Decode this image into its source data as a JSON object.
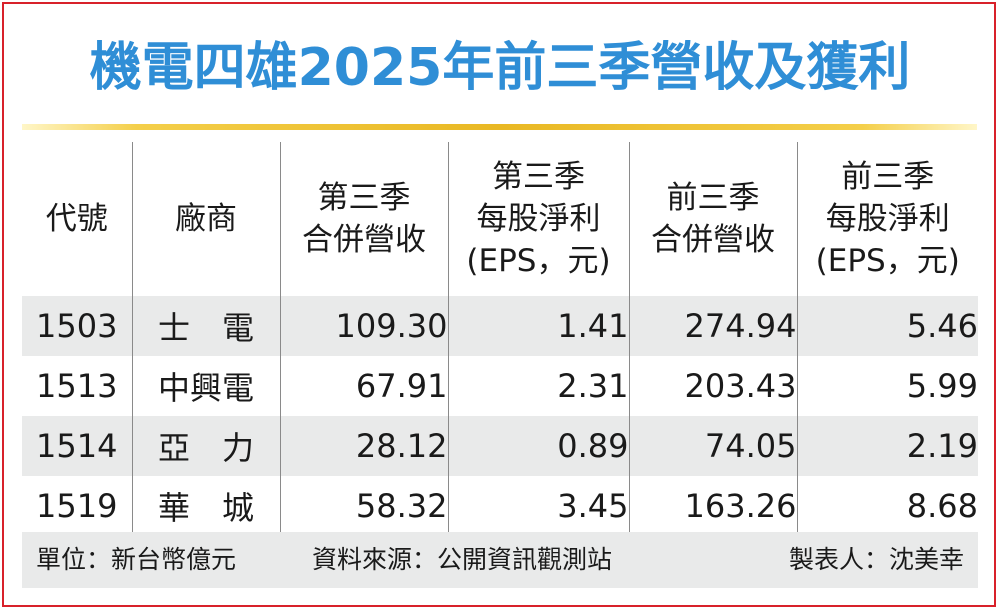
{
  "title": "機電四雄2025年前三季營收及獲利",
  "table": {
    "headers": [
      [
        "代號"
      ],
      [
        "廠商"
      ],
      [
        "第三季",
        "合併營收"
      ],
      [
        "第三季",
        "每股淨利",
        "(EPS，元)"
      ],
      [
        "前三季",
        "合併營收"
      ],
      [
        "前三季",
        "每股淨利",
        "(EPS，元)"
      ]
    ],
    "rows": [
      [
        "1503",
        "士　電",
        "109.30",
        "1.41",
        "274.94",
        "5.46"
      ],
      [
        "1513",
        "中興電",
        "67.91",
        "2.31",
        "203.43",
        "5.99"
      ],
      [
        "1514",
        "亞　力",
        "28.12",
        "0.89",
        "74.05",
        "2.19"
      ],
      [
        "1519",
        "華　城",
        "58.32",
        "3.45",
        "163.26",
        "8.68"
      ]
    ]
  },
  "footer": {
    "unit": "單位：新台幣億元",
    "source": "資料來源：公開資訊觀測站",
    "maker": "製表人：沈美幸"
  },
  "colors": {
    "title": "#2f8ed6",
    "border": "#d8212a",
    "rule": "#e9b823",
    "row_shade": "#e9eaea"
  }
}
